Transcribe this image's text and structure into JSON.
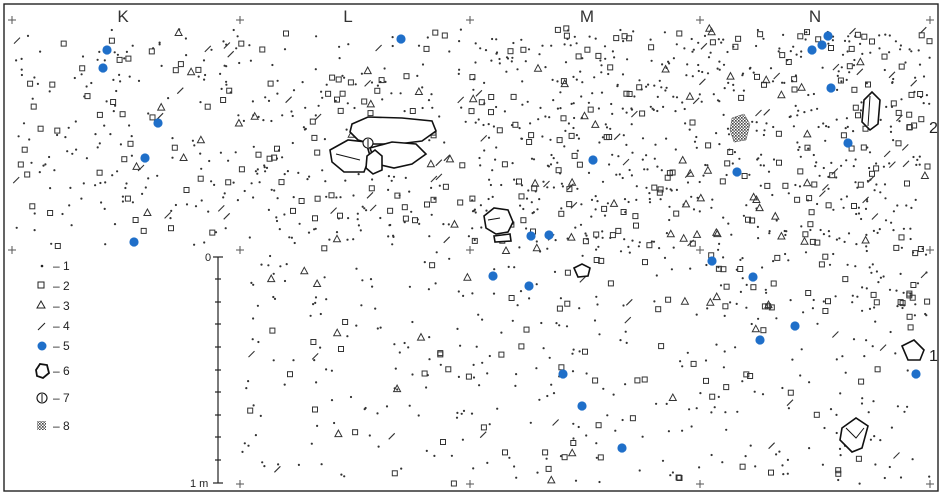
{
  "squares": [
    "K",
    "L",
    "M",
    "N"
  ],
  "side_labels": [
    "1",
    "2"
  ],
  "legend": [
    {
      "symbol": "dot",
      "label": "– 1"
    },
    {
      "symbol": "square",
      "label": "– 2"
    },
    {
      "symbol": "triangle",
      "label": "– 3"
    },
    {
      "symbol": "dash",
      "label": "– 4"
    },
    {
      "symbol": "blue-circle",
      "label": "– 5"
    },
    {
      "symbol": "stone",
      "label": "– 6"
    },
    {
      "symbol": "circled-one",
      "label": "– 7"
    },
    {
      "symbol": "hatched",
      "label": "– 8"
    }
  ],
  "scale": {
    "zero_label": "0",
    "end_label": "1 m"
  },
  "colors": {
    "find_blue": "#1f6fc9",
    "ink": "#222222"
  }
}
